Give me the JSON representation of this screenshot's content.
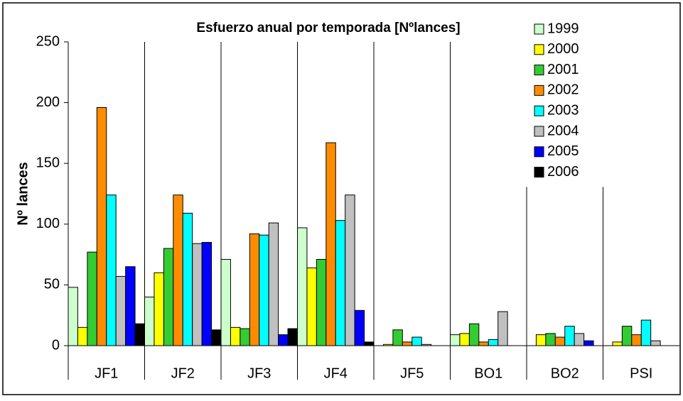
{
  "chart_data": {
    "type": "bar",
    "title": "Esfuerzo anual por temporada [Nºlances]",
    "y_label": "Nº lances",
    "categories": [
      "JF1",
      "JF2",
      "JF3",
      "JF4",
      "JF5",
      "BO1",
      "BO2",
      "PSI"
    ],
    "series": [
      {
        "name": "1999",
        "color": "#ccffcc",
        "values": [
          48,
          40,
          71,
          97,
          0,
          9,
          0,
          0
        ]
      },
      {
        "name": "2000",
        "color": "#ffff00",
        "values": [
          15,
          60,
          15,
          64,
          1,
          10,
          9,
          3
        ]
      },
      {
        "name": "2001",
        "color": "#33cc33",
        "values": [
          77,
          80,
          14,
          71,
          13,
          18,
          10,
          16
        ]
      },
      {
        "name": "2002",
        "color": "#ff8c00",
        "values": [
          196,
          124,
          92,
          167,
          3,
          3,
          7,
          9
        ]
      },
      {
        "name": "2003",
        "color": "#00ffff",
        "values": [
          124,
          109,
          91,
          103,
          7,
          5,
          16,
          21
        ]
      },
      {
        "name": "2004",
        "color": "#c0c0c0",
        "values": [
          57,
          84,
          101,
          124,
          1,
          28,
          10,
          4
        ]
      },
      {
        "name": "2005",
        "color": "#0000ff",
        "values": [
          65,
          85,
          9,
          29,
          0,
          0,
          4,
          0
        ]
      },
      {
        "name": "2006",
        "color": "#000000",
        "values": [
          18,
          13,
          14,
          3,
          0,
          0,
          0,
          0
        ]
      }
    ],
    "ylim": [
      0,
      250
    ],
    "yticks": [
      0,
      50,
      100,
      150,
      200,
      250
    ],
    "legend": "top-right"
  }
}
